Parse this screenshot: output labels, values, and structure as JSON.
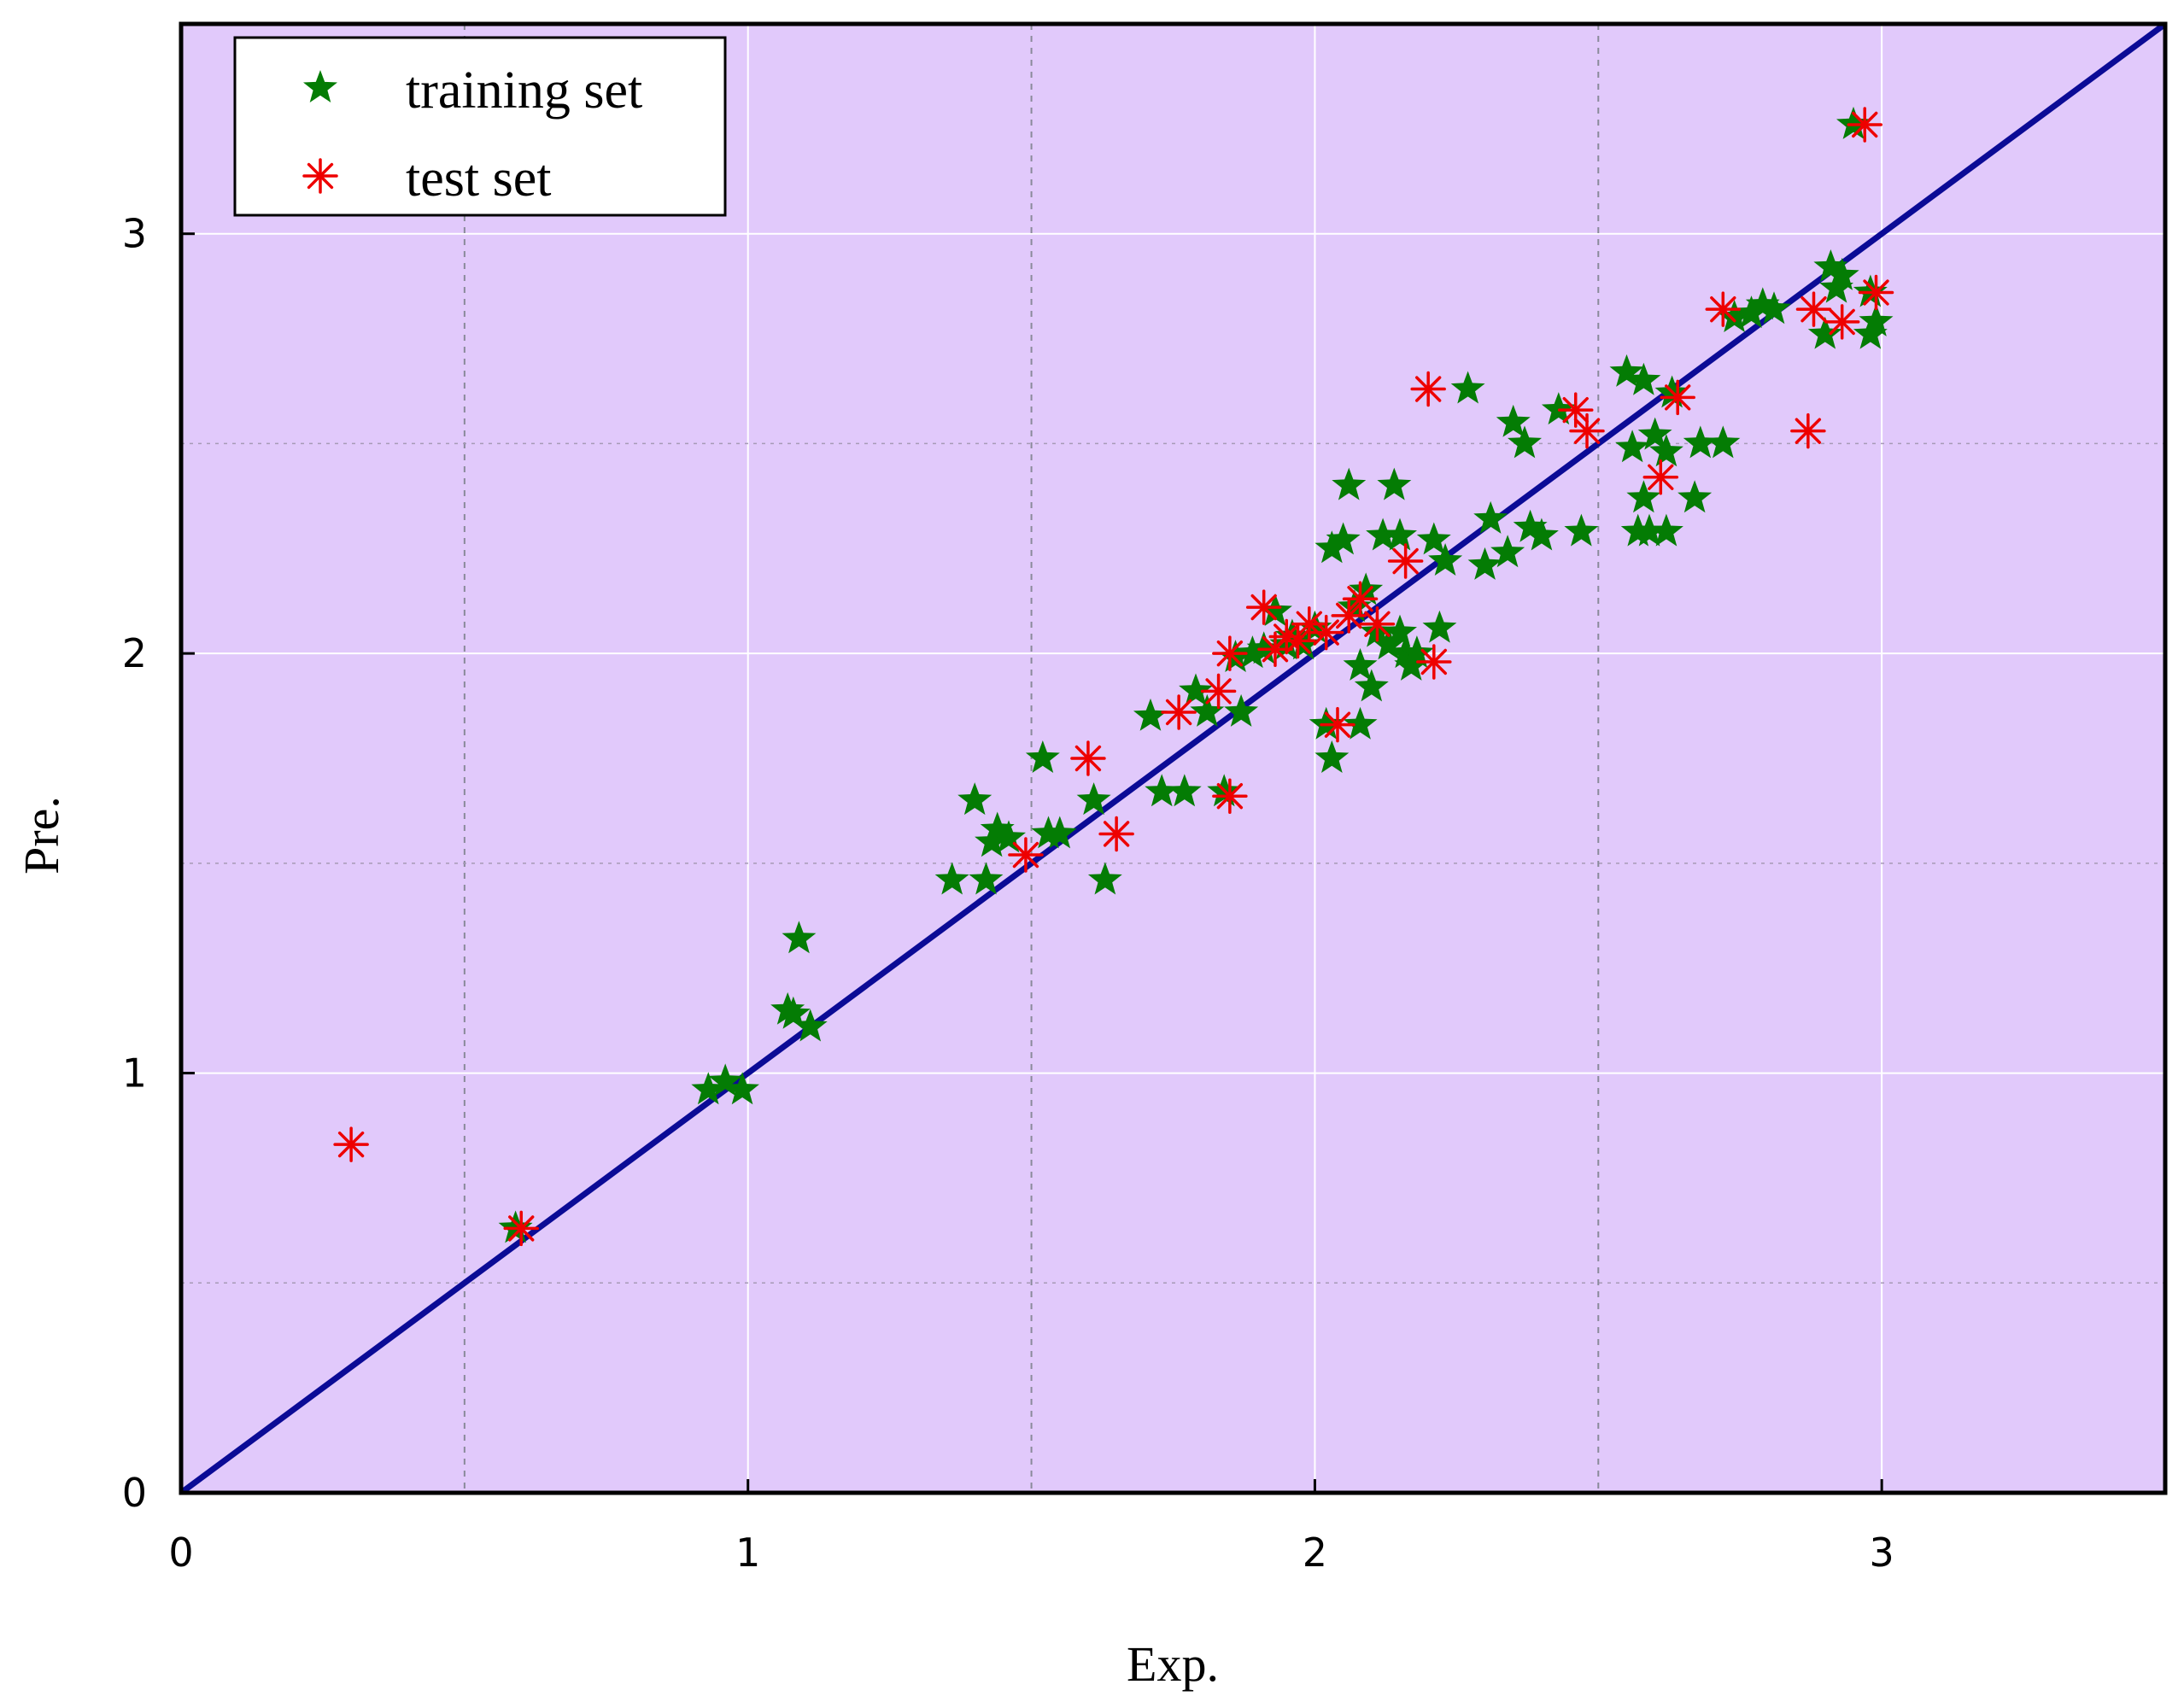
{
  "chart_data": {
    "type": "scatter",
    "title": "",
    "xlabel": "Exp.",
    "ylabel": "Pre.",
    "xlim": [
      0,
      3.5
    ],
    "ylim": [
      0,
      3.5
    ],
    "xticks": [
      0,
      1,
      2,
      3
    ],
    "yticks": [
      0,
      1,
      2,
      3
    ],
    "xtick_labels": [
      "0",
      "1",
      "2",
      "3"
    ],
    "ytick_labels": [
      "0",
      "1",
      "2",
      "3"
    ],
    "minor_gridlines": [
      0.5,
      1.5,
      2.5
    ],
    "grid": true,
    "background_color": "#e1c9fb",
    "legend_placement": "top-left",
    "reference_line": {
      "name": "y = x",
      "from": [
        0,
        0
      ],
      "to": [
        3.5,
        3.5
      ],
      "color": "#0b0b96"
    },
    "series": [
      {
        "name": "training set",
        "marker": "star",
        "color": "#047c04",
        "points": [
          [
            0.59,
            0.63
          ],
          [
            0.93,
            0.96
          ],
          [
            0.96,
            0.98
          ],
          [
            0.99,
            0.96
          ],
          [
            1.08,
            1.14
          ],
          [
            1.09,
            1.32
          ],
          [
            1.11,
            1.11
          ],
          [
            1.07,
            1.15
          ],
          [
            1.36,
            1.46
          ],
          [
            1.4,
            1.65
          ],
          [
            1.42,
            1.46
          ],
          [
            1.43,
            1.55
          ],
          [
            1.44,
            1.58
          ],
          [
            1.46,
            1.56
          ],
          [
            1.52,
            1.75
          ],
          [
            1.53,
            1.57
          ],
          [
            1.55,
            1.57
          ],
          [
            1.61,
            1.65
          ],
          [
            1.63,
            1.46
          ],
          [
            1.71,
            1.85
          ],
          [
            1.73,
            1.67
          ],
          [
            1.77,
            1.67
          ],
          [
            1.79,
            1.91
          ],
          [
            1.81,
            1.86
          ],
          [
            1.84,
            1.67
          ],
          [
            1.86,
            1.99
          ],
          [
            1.87,
            1.86
          ],
          [
            1.89,
            2.0
          ],
          [
            1.91,
            2.01
          ],
          [
            1.93,
            2.1
          ],
          [
            1.95,
            2.02
          ],
          [
            1.96,
            2.04
          ],
          [
            1.98,
            2.02
          ],
          [
            2.0,
            2.06
          ],
          [
            2.02,
            1.83
          ],
          [
            2.03,
            1.75
          ],
          [
            2.03,
            2.25
          ],
          [
            2.05,
            2.27
          ],
          [
            2.06,
            2.4
          ],
          [
            2.07,
            2.11
          ],
          [
            2.08,
            1.97
          ],
          [
            2.08,
            1.83
          ],
          [
            2.09,
            2.15
          ],
          [
            2.1,
            1.92
          ],
          [
            2.11,
            2.05
          ],
          [
            2.12,
            2.28
          ],
          [
            2.13,
            2.02
          ],
          [
            2.14,
            2.4
          ],
          [
            2.15,
            2.05
          ],
          [
            2.15,
            2.28
          ],
          [
            2.16,
            2.0
          ],
          [
            2.17,
            1.97
          ],
          [
            2.18,
            2.0
          ],
          [
            2.21,
            2.27
          ],
          [
            2.22,
            2.06
          ],
          [
            2.23,
            2.22
          ],
          [
            2.27,
            2.63
          ],
          [
            2.3,
            2.21
          ],
          [
            2.31,
            2.32
          ],
          [
            2.34,
            2.24
          ],
          [
            2.35,
            2.55
          ],
          [
            2.37,
            2.5
          ],
          [
            2.38,
            2.3
          ],
          [
            2.4,
            2.28
          ],
          [
            2.43,
            2.58
          ],
          [
            2.47,
            2.29
          ],
          [
            2.55,
            2.67
          ],
          [
            2.56,
            2.49
          ],
          [
            2.57,
            2.29
          ],
          [
            2.58,
            2.37
          ],
          [
            2.58,
            2.65
          ],
          [
            2.59,
            2.29
          ],
          [
            2.6,
            2.52
          ],
          [
            2.62,
            2.48
          ],
          [
            2.62,
            2.29
          ],
          [
            2.63,
            2.62
          ],
          [
            2.67,
            2.37
          ],
          [
            2.68,
            2.5
          ],
          [
            2.72,
            2.5
          ],
          [
            2.74,
            2.8
          ],
          [
            2.77,
            2.81
          ],
          [
            2.79,
            2.83
          ],
          [
            2.81,
            2.82
          ],
          [
            2.9,
            2.76
          ],
          [
            2.91,
            2.92
          ],
          [
            2.92,
            2.87
          ],
          [
            2.93,
            2.9
          ],
          [
            2.95,
            3.26
          ],
          [
            2.98,
            2.86
          ],
          [
            2.98,
            2.76
          ],
          [
            2.99,
            2.79
          ]
        ]
      },
      {
        "name": "test set",
        "marker": "asterisk",
        "color": "#ee0000",
        "points": [
          [
            0.3,
            0.83
          ],
          [
            0.6,
            0.63
          ],
          [
            1.49,
            1.52
          ],
          [
            1.6,
            1.75
          ],
          [
            1.65,
            1.57
          ],
          [
            1.76,
            1.86
          ],
          [
            1.83,
            1.91
          ],
          [
            1.85,
            2.0
          ],
          [
            1.85,
            1.66
          ],
          [
            1.91,
            2.11
          ],
          [
            1.93,
            2.01
          ],
          [
            1.95,
            2.04
          ],
          [
            1.97,
            2.03
          ],
          [
            1.99,
            2.07
          ],
          [
            2.02,
            2.05
          ],
          [
            2.04,
            1.83
          ],
          [
            2.06,
            2.09
          ],
          [
            2.08,
            2.13
          ],
          [
            2.11,
            2.07
          ],
          [
            2.16,
            2.22
          ],
          [
            2.2,
            2.63
          ],
          [
            2.21,
            1.98
          ],
          [
            2.46,
            2.58
          ],
          [
            2.48,
            2.53
          ],
          [
            2.61,
            2.42
          ],
          [
            2.64,
            2.61
          ],
          [
            2.72,
            2.82
          ],
          [
            2.87,
            2.53
          ],
          [
            2.88,
            2.82
          ],
          [
            2.93,
            2.79
          ],
          [
            2.97,
            3.26
          ],
          [
            2.99,
            2.86
          ]
        ]
      }
    ]
  }
}
